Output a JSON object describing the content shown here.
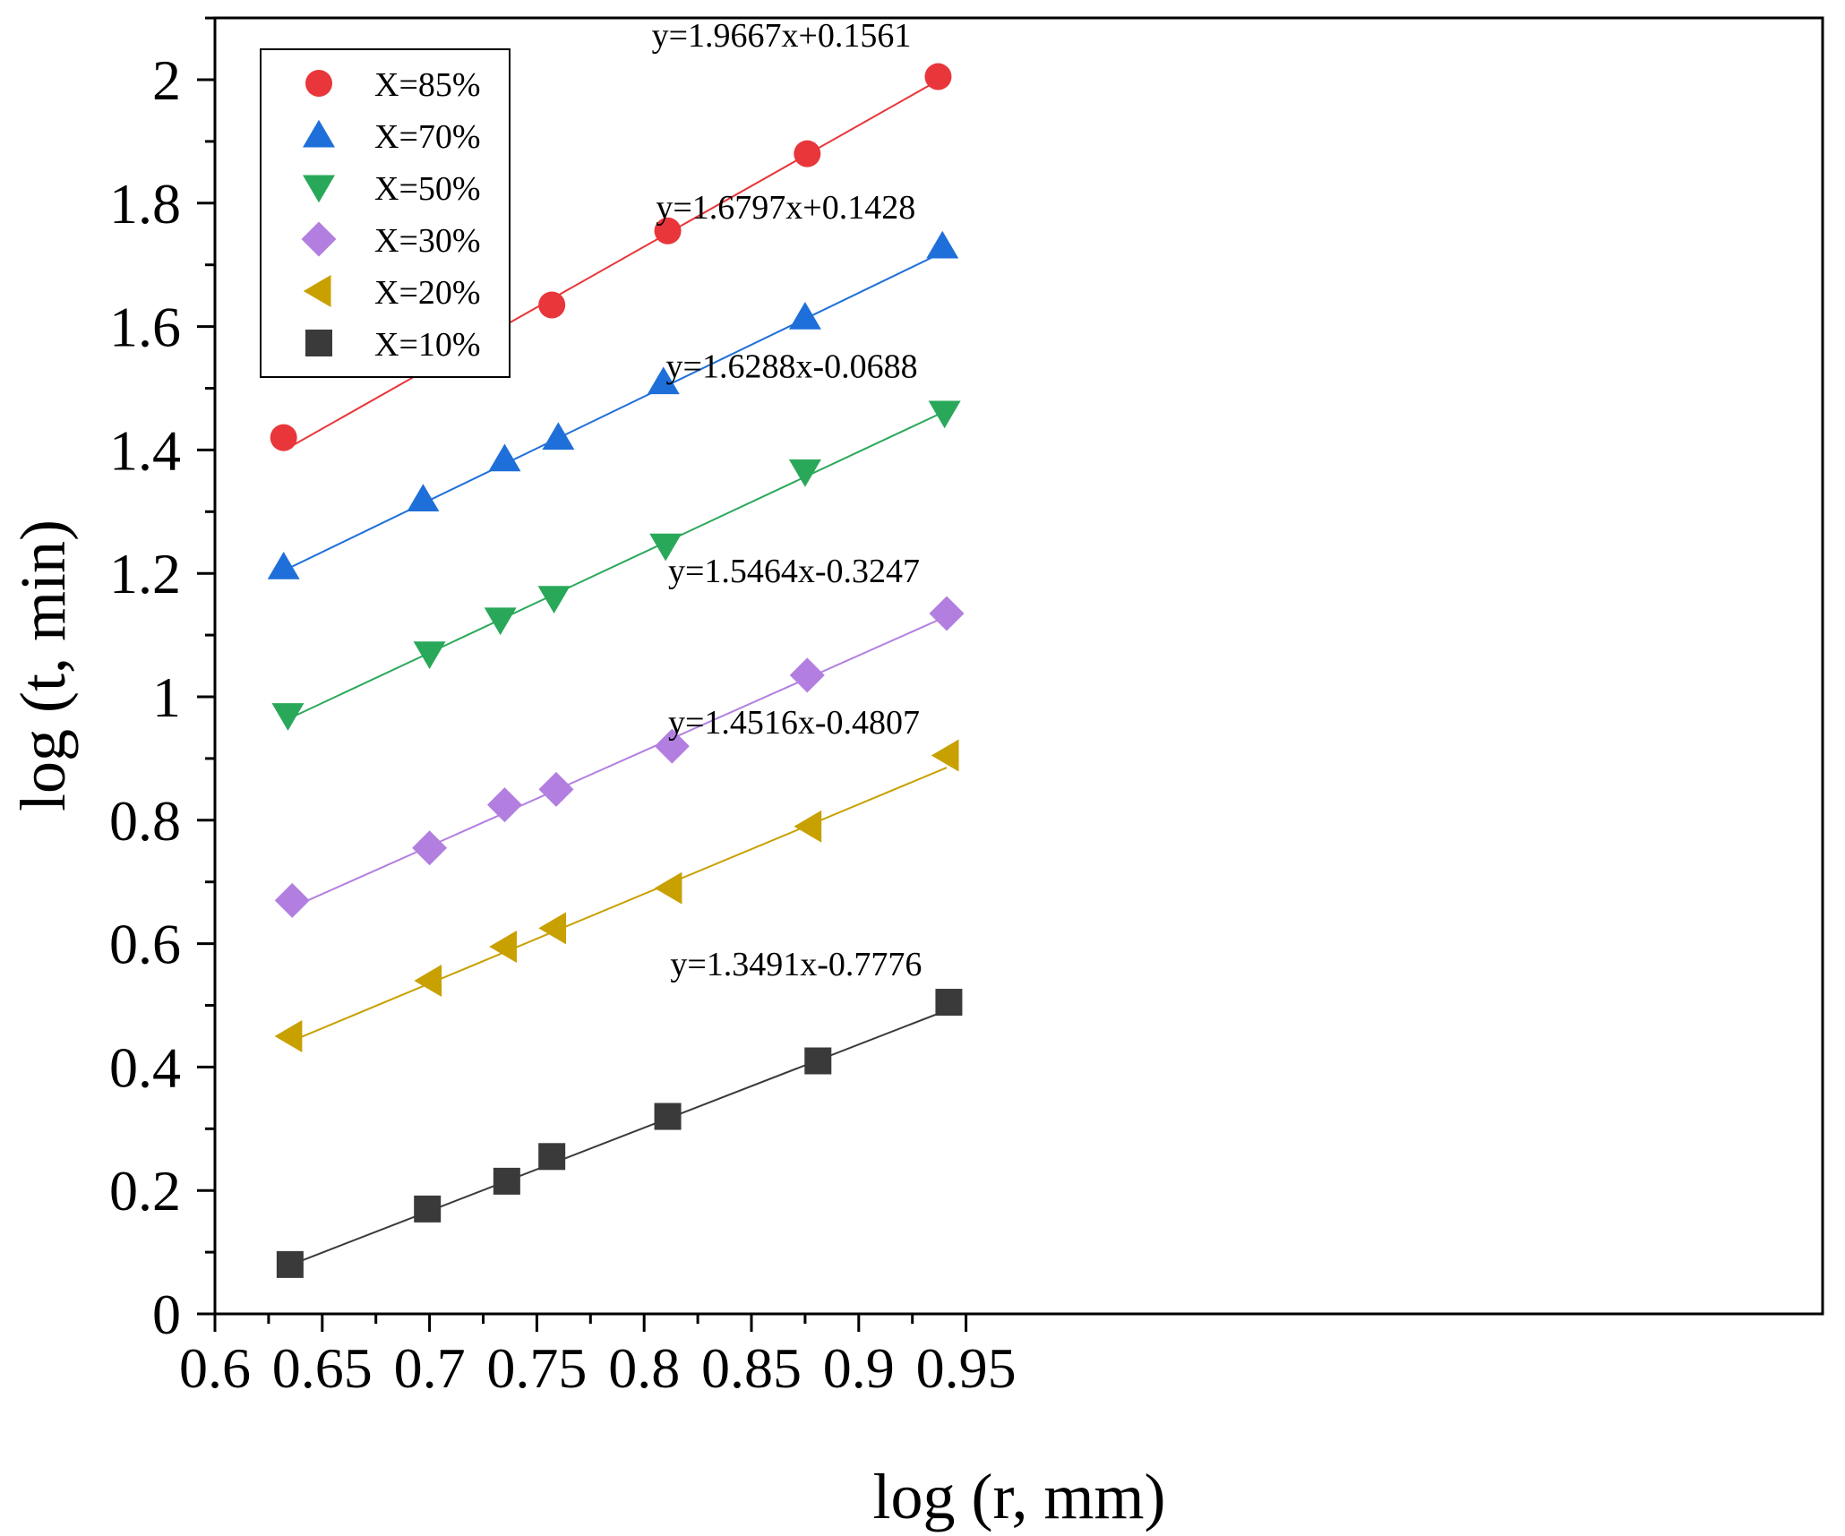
{
  "chart_data": {
    "type": "scatter",
    "title": "",
    "xlabel": "log (r, mm)",
    "ylabel": "log (t, min)",
    "xlim": [
      0.6,
      0.975
    ],
    "ylim": [
      0,
      2.1
    ],
    "xticks": [
      "0.6",
      "0.65",
      "0.7",
      "0.75",
      "0.8",
      "0.85",
      "0.9",
      "0.95"
    ],
    "yticks": [
      "0",
      "0.2",
      "0.4",
      "0.6",
      "0.8",
      "1",
      "1.2",
      "1.4",
      "1.6",
      "1.8",
      "2"
    ],
    "grid": false,
    "legend_position": "top-left",
    "series": [
      {
        "name": "X=85%",
        "marker": "circle",
        "color": "#e8363a",
        "x": [
          0.632,
          0.697,
          0.731,
          0.757,
          0.811,
          0.876,
          0.937
        ],
        "y": [
          1.42,
          1.54,
          1.59,
          1.635,
          1.755,
          1.88,
          2.005
        ],
        "fit": {
          "slope": 1.9667,
          "intercept": 0.1561,
          "x_range": [
            0.632,
            0.937
          ],
          "label": "y=1.9667x+0.1561"
        }
      },
      {
        "name": "X=70%",
        "marker": "triangle-up",
        "color": "#1e6fd9",
        "x": [
          0.632,
          0.697,
          0.735,
          0.76,
          0.809,
          0.875,
          0.939
        ],
        "y": [
          1.21,
          1.32,
          1.385,
          1.42,
          1.51,
          1.615,
          1.73
        ],
        "fit": {
          "slope": 1.6797,
          "intercept": 0.1428,
          "x_range": [
            0.632,
            0.939
          ],
          "label": "y=1.6797x+0.1428"
        }
      },
      {
        "name": "X=50%",
        "marker": "triangle-down",
        "color": "#2aa85a",
        "x": [
          0.634,
          0.7,
          0.733,
          0.758,
          0.81,
          0.875,
          0.94
        ],
        "y": [
          0.97,
          1.07,
          1.125,
          1.16,
          1.245,
          1.365,
          1.46
        ],
        "fit": {
          "slope": 1.6288,
          "intercept": -0.0688,
          "x_range": [
            0.634,
            0.94
          ],
          "label": "y=1.6288x-0.0688"
        }
      },
      {
        "name": "X=30%",
        "marker": "diamond",
        "color": "#b27fe0",
        "x": [
          0.636,
          0.7,
          0.735,
          0.759,
          0.813,
          0.876,
          0.941
        ],
        "y": [
          0.67,
          0.755,
          0.825,
          0.85,
          0.92,
          1.035,
          1.135
        ],
        "fit": {
          "slope": 1.5464,
          "intercept": -0.3247,
          "x_range": [
            0.636,
            0.941
          ],
          "label": "y=1.5464x-0.3247"
        }
      },
      {
        "name": "X=20%",
        "marker": "triangle-left",
        "color": "#c8a000",
        "x": [
          0.635,
          0.7,
          0.735,
          0.758,
          0.812,
          0.877,
          0.941
        ],
        "y": [
          0.45,
          0.54,
          0.595,
          0.625,
          0.69,
          0.79,
          0.905
        ],
        "fit": {
          "slope": 1.4516,
          "intercept": -0.4807,
          "x_range": [
            0.635,
            0.941
          ],
          "label": "y=1.4516x-0.4807"
        }
      },
      {
        "name": "X=10%",
        "marker": "square",
        "color": "#3a3a3a",
        "x": [
          0.635,
          0.699,
          0.736,
          0.757,
          0.811,
          0.881,
          0.942
        ],
        "y": [
          0.08,
          0.17,
          0.215,
          0.255,
          0.32,
          0.41,
          0.505
        ],
        "fit": {
          "slope": 1.3491,
          "intercept": -0.7776,
          "x_range": [
            0.635,
            0.942
          ],
          "label": "y=1.3491x-0.7776"
        }
      }
    ]
  }
}
